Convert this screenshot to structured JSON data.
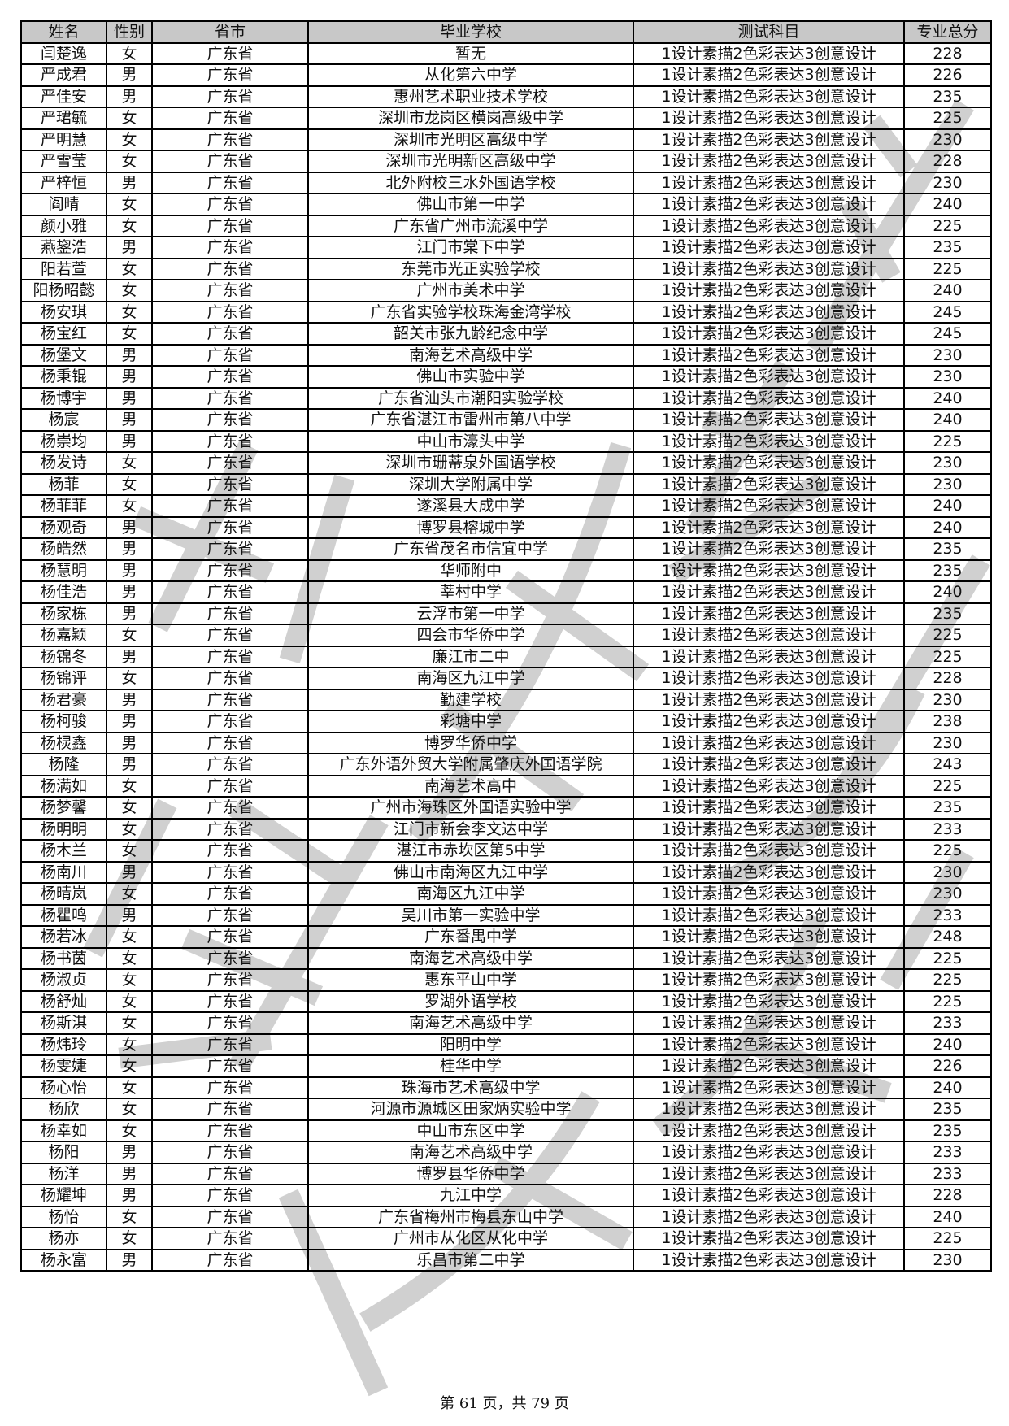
{
  "watermark": {
    "text": "广州美术学院",
    "color": "#d0d0d0"
  },
  "table": {
    "headers": [
      "姓名",
      "性别",
      "省市",
      "毕业学校",
      "测试科目",
      "专业总分"
    ],
    "header_bg": "#c8c8c8",
    "rows": [
      [
        "闫楚逸",
        "女",
        "广东省",
        "暂无",
        "1设计素描2色彩表达3创意设计",
        "228"
      ],
      [
        "严成君",
        "男",
        "广东省",
        "从化第六中学",
        "1设计素描2色彩表达3创意设计",
        "226"
      ],
      [
        "严佳安",
        "男",
        "广东省",
        "惠州艺术职业技术学校",
        "1设计素描2色彩表达3创意设计",
        "235"
      ],
      [
        "严珺毓",
        "女",
        "广东省",
        "深圳市龙岗区横岗高级中学",
        "1设计素描2色彩表达3创意设计",
        "225"
      ],
      [
        "严明慧",
        "女",
        "广东省",
        "深圳市光明区高级中学",
        "1设计素描2色彩表达3创意设计",
        "230"
      ],
      [
        "严雪莹",
        "女",
        "广东省",
        "深圳市光明新区高级中学",
        "1设计素描2色彩表达3创意设计",
        "228"
      ],
      [
        "严梓恒",
        "男",
        "广东省",
        "北外附校三水外国语学校",
        "1设计素描2色彩表达3创意设计",
        "230"
      ],
      [
        "阎晴",
        "女",
        "广东省",
        "佛山市第一中学",
        "1设计素描2色彩表达3创意设计",
        "240"
      ],
      [
        "颜小雅",
        "女",
        "广东省",
        "广东省广州市流溪中学",
        "1设计素描2色彩表达3创意设计",
        "225"
      ],
      [
        "燕鋆浩",
        "男",
        "广东省",
        "江门市棠下中学",
        "1设计素描2色彩表达3创意设计",
        "235"
      ],
      [
        "阳若萱",
        "女",
        "广东省",
        "东莞市光正实验学校",
        "1设计素描2色彩表达3创意设计",
        "225"
      ],
      [
        "阳杨昭懿",
        "女",
        "广东省",
        "广州市美术中学",
        "1设计素描2色彩表达3创意设计",
        "240"
      ],
      [
        "杨安琪",
        "女",
        "广东省",
        "广东省实验学校珠海金湾学校",
        "1设计素描2色彩表达3创意设计",
        "245"
      ],
      [
        "杨宝红",
        "女",
        "广东省",
        "韶关市张九龄纪念中学",
        "1设计素描2色彩表达3创意设计",
        "245"
      ],
      [
        "杨堡文",
        "男",
        "广东省",
        "南海艺术高级中学",
        "1设计素描2色彩表达3创意设计",
        "230"
      ],
      [
        "杨秉锟",
        "男",
        "广东省",
        "佛山市实验中学",
        "1设计素描2色彩表达3创意设计",
        "230"
      ],
      [
        "杨博宇",
        "男",
        "广东省",
        "广东省汕头市潮阳实验学校",
        "1设计素描2色彩表达3创意设计",
        "240"
      ],
      [
        "杨宸",
        "男",
        "广东省",
        "广东省湛江市雷州市第八中学",
        "1设计素描2色彩表达3创意设计",
        "240"
      ],
      [
        "杨崇均",
        "男",
        "广东省",
        "中山市濠头中学",
        "1设计素描2色彩表达3创意设计",
        "225"
      ],
      [
        "杨发诗",
        "女",
        "广东省",
        "深圳市珊蒂泉外国语学校",
        "1设计素描2色彩表达3创意设计",
        "230"
      ],
      [
        "杨菲",
        "女",
        "广东省",
        "深圳大学附属中学",
        "1设计素描2色彩表达3创意设计",
        "230"
      ],
      [
        "杨菲菲",
        "女",
        "广东省",
        "遂溪县大成中学",
        "1设计素描2色彩表达3创意设计",
        "240"
      ],
      [
        "杨观奇",
        "男",
        "广东省",
        "博罗县榕城中学",
        "1设计素描2色彩表达3创意设计",
        "240"
      ],
      [
        "杨皓然",
        "男",
        "广东省",
        "广东省茂名市信宜中学",
        "1设计素描2色彩表达3创意设计",
        "235"
      ],
      [
        "杨慧明",
        "男",
        "广东省",
        "华师附中",
        "1设计素描2色彩表达3创意设计",
        "235"
      ],
      [
        "杨佳浩",
        "男",
        "广东省",
        "莘村中学",
        "1设计素描2色彩表达3创意设计",
        "240"
      ],
      [
        "杨家栋",
        "男",
        "广东省",
        "云浮市第一中学",
        "1设计素描2色彩表达3创意设计",
        "235"
      ],
      [
        "杨嘉颖",
        "女",
        "广东省",
        "四会市华侨中学",
        "1设计素描2色彩表达3创意设计",
        "225"
      ],
      [
        "杨锦冬",
        "男",
        "广东省",
        "廉江市二中",
        "1设计素描2色彩表达3创意设计",
        "225"
      ],
      [
        "杨锦评",
        "女",
        "广东省",
        "南海区九江中学",
        "1设计素描2色彩表达3创意设计",
        "228"
      ],
      [
        "杨君豪",
        "男",
        "广东省",
        "勤建学校",
        "1设计素描2色彩表达3创意设计",
        "230"
      ],
      [
        "杨柯骏",
        "男",
        "广东省",
        "彩塘中学",
        "1设计素描2色彩表达3创意设计",
        "238"
      ],
      [
        "杨棂鑫",
        "男",
        "广东省",
        "博罗华侨中学",
        "1设计素描2色彩表达3创意设计",
        "230"
      ],
      [
        "杨隆",
        "男",
        "广东省",
        "广东外语外贸大学附属肇庆外国语学院",
        "1设计素描2色彩表达3创意设计",
        "243"
      ],
      [
        "杨满如",
        "女",
        "广东省",
        "南海艺术高中",
        "1设计素描2色彩表达3创意设计",
        "225"
      ],
      [
        "杨梦馨",
        "女",
        "广东省",
        "广州市海珠区外国语实验中学",
        "1设计素描2色彩表达3创意设计",
        "235"
      ],
      [
        "杨明明",
        "女",
        "广东省",
        "江门市新会李文达中学",
        "1设计素描2色彩表达3创意设计",
        "233"
      ],
      [
        "杨木兰",
        "女",
        "广东省",
        "湛江市赤坎区第5中学",
        "1设计素描2色彩表达3创意设计",
        "225"
      ],
      [
        "杨南川",
        "男",
        "广东省",
        "佛山市南海区九江中学",
        "1设计素描2色彩表达3创意设计",
        "230"
      ],
      [
        "杨晴岚",
        "女",
        "广东省",
        "南海区九江中学",
        "1设计素描2色彩表达3创意设计",
        "230"
      ],
      [
        "杨瞿鸣",
        "男",
        "广东省",
        "吴川市第一实验中学",
        "1设计素描2色彩表达3创意设计",
        "233"
      ],
      [
        "杨若冰",
        "女",
        "广东省",
        "广东番禺中学",
        "1设计素描2色彩表达3创意设计",
        "248"
      ],
      [
        "杨书茵",
        "女",
        "广东省",
        "南海艺术高级中学",
        "1设计素描2色彩表达3创意设计",
        "225"
      ],
      [
        "杨淑贞",
        "女",
        "广东省",
        "惠东平山中学",
        "1设计素描2色彩表达3创意设计",
        "225"
      ],
      [
        "杨舒灿",
        "女",
        "广东省",
        "罗湖外语学校",
        "1设计素描2色彩表达3创意设计",
        "225"
      ],
      [
        "杨斯淇",
        "女",
        "广东省",
        "南海艺术高级中学",
        "1设计素描2色彩表达3创意设计",
        "233"
      ],
      [
        "杨炜玲",
        "女",
        "广东省",
        "阳明中学",
        "1设计素描2色彩表达3创意设计",
        "240"
      ],
      [
        "杨雯婕",
        "女",
        "广东省",
        "桂华中学",
        "1设计素描2色彩表达3创意设计",
        "226"
      ],
      [
        "杨心怡",
        "女",
        "广东省",
        "珠海市艺术高级中学",
        "1设计素描2色彩表达3创意设计",
        "240"
      ],
      [
        "杨欣",
        "女",
        "广东省",
        "河源市源城区田家炳实验中学",
        "1设计素描2色彩表达3创意设计",
        "235"
      ],
      [
        "杨幸如",
        "女",
        "广东省",
        "中山市东区中学",
        "1设计素描2色彩表达3创意设计",
        "235"
      ],
      [
        "杨阳",
        "男",
        "广东省",
        "南海艺术高级中学",
        "1设计素描2色彩表达3创意设计",
        "233"
      ],
      [
        "杨洋",
        "男",
        "广东省",
        "博罗县华侨中学",
        "1设计素描2色彩表达3创意设计",
        "233"
      ],
      [
        "杨耀坤",
        "男",
        "广东省",
        "九江中学",
        "1设计素描2色彩表达3创意设计",
        "228"
      ],
      [
        "杨怡",
        "女",
        "广东省",
        "广东省梅州市梅县东山中学",
        "1设计素描2色彩表达3创意设计",
        "240"
      ],
      [
        "杨亦",
        "女",
        "广东省",
        "广州市从化区从化中学",
        "1设计素描2色彩表达3创意设计",
        "225"
      ],
      [
        "杨永富",
        "男",
        "广东省",
        "乐昌市第二中学",
        "1设计素描2色彩表达3创意设计",
        "230"
      ]
    ]
  },
  "footer": {
    "page_label": "第 61 页，共 79 页"
  }
}
